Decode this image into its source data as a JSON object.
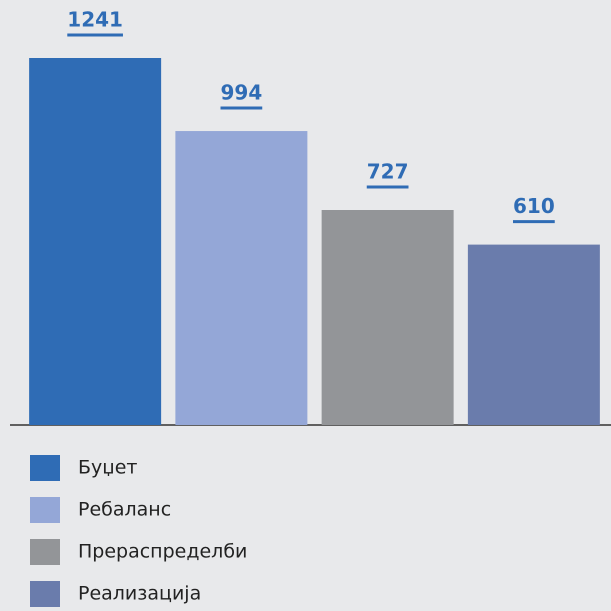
{
  "chart_data": {
    "type": "bar",
    "categories": [
      "Буџет",
      "Ребаланс",
      "Прераспределби",
      "Реализација"
    ],
    "values": [
      1241,
      994,
      727,
      610
    ],
    "colors": [
      "#2f6cb5",
      "#94a7d7",
      "#939598",
      "#6a7cac"
    ],
    "label_color": "#2f6cb5"
  }
}
